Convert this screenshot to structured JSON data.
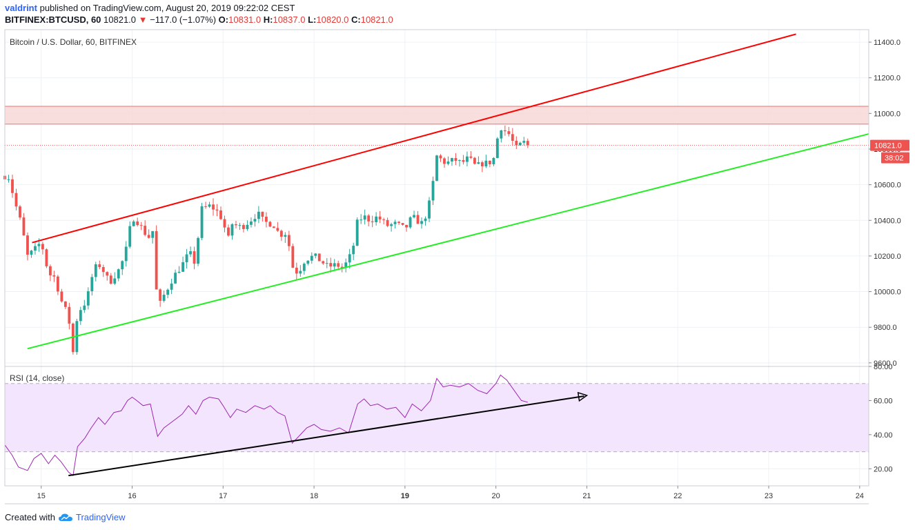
{
  "header": {
    "author": "valdrint",
    "published_text": "published on TradingView.com, August 20, 2019 09:22:02 CEST",
    "symbol": "BITFINEX:BTCUSD, 60",
    "last": "10821.0",
    "change_arrow": "▼",
    "change": "−117.0 (−1.07%)",
    "o_label": "O:",
    "o_value": "10831.0",
    "h_label": "H:",
    "h_value": "10837.0",
    "l_label": "L:",
    "l_value": "10820.0",
    "c_label": "C:",
    "c_value": "10821.0"
  },
  "footer": {
    "created_with": "Created with",
    "brand": "TradingView",
    "logo_icon": "tradingview-cloud-icon"
  },
  "colors": {
    "up": "#26a69a",
    "down": "#ef5350",
    "resistance_line": "#ff0000",
    "support_line": "#22ee22",
    "zone_fill": "#f8d8d8",
    "rsi_line": "#9c27b0",
    "rsi_band": "#f3e5fd",
    "price_badge": "#ef5350",
    "grid": "#eef2f6"
  },
  "chart_data": [
    {
      "type": "candlestick",
      "title": "Bitcoin / U.S. Dollar, 60, BITFINEX",
      "xlabel": "",
      "ylabel": "",
      "x_ticks": [
        "15",
        "16",
        "17",
        "18",
        "19",
        "20",
        "21",
        "22",
        "23",
        "24"
      ],
      "x_range_days": [
        14.6,
        24.1
      ],
      "y_ticks": [
        "11400.0",
        "11200.0",
        "11000.0",
        "10800.0",
        "10600.0",
        "10400.0",
        "10200.0",
        "10000.0",
        "9800.0",
        "9600.0"
      ],
      "ylim": [
        9580,
        11470
      ],
      "grid": true,
      "last_price_badge": "10821.0",
      "countdown_badge": "38:02",
      "last_price": 10821,
      "resistance_zone": [
        10940,
        11040
      ],
      "trendlines": [
        {
          "role": "resistance",
          "from": {
            "day": 14.9,
            "price": 10275
          },
          "to": {
            "day": 23.3,
            "price": 11445
          }
        },
        {
          "role": "support",
          "from": {
            "day": 14.85,
            "price": 9680
          },
          "to": {
            "day": 24.1,
            "price": 10885
          }
        }
      ],
      "close_anchors": [
        [
          14.6,
          10650
        ],
        [
          14.65,
          10640
        ],
        [
          14.7,
          10520
        ],
        [
          14.78,
          10380
        ],
        [
          14.85,
          10200
        ],
        [
          14.92,
          10230
        ],
        [
          15.0,
          10280
        ],
        [
          15.08,
          10100
        ],
        [
          15.15,
          10080
        ],
        [
          15.22,
          9950
        ],
        [
          15.3,
          9860
        ],
        [
          15.35,
          9660
        ],
        [
          15.4,
          9880
        ],
        [
          15.5,
          9950
        ],
        [
          15.58,
          10130
        ],
        [
          15.65,
          10150
        ],
        [
          15.75,
          10050
        ],
        [
          15.85,
          10120
        ],
        [
          15.92,
          10200
        ],
        [
          16.0,
          10420
        ],
        [
          16.05,
          10400
        ],
        [
          16.1,
          10360
        ],
        [
          16.18,
          10300
        ],
        [
          16.22,
          10380
        ],
        [
          16.28,
          9900
        ],
        [
          16.35,
          9980
        ],
        [
          16.45,
          10080
        ],
        [
          16.55,
          10150
        ],
        [
          16.63,
          10220
        ],
        [
          16.7,
          10150
        ],
        [
          16.75,
          10460
        ],
        [
          16.85,
          10480
        ],
        [
          16.92,
          10460
        ],
        [
          17.0,
          10400
        ],
        [
          17.05,
          10280
        ],
        [
          17.1,
          10380
        ],
        [
          17.2,
          10360
        ],
        [
          17.3,
          10400
        ],
        [
          17.38,
          10440
        ],
        [
          17.45,
          10390
        ],
        [
          17.55,
          10380
        ],
        [
          17.62,
          10320
        ],
        [
          17.7,
          10330
        ],
        [
          17.78,
          10100
        ],
        [
          17.85,
          10130
        ],
        [
          17.9,
          10180
        ],
        [
          18.0,
          10200
        ],
        [
          18.08,
          10170
        ],
        [
          18.15,
          10140
        ],
        [
          18.25,
          10150
        ],
        [
          18.32,
          10130
        ],
        [
          18.42,
          10220
        ],
        [
          18.48,
          10400
        ],
        [
          18.55,
          10420
        ],
        [
          18.62,
          10400
        ],
        [
          18.7,
          10420
        ],
        [
          18.8,
          10370
        ],
        [
          18.9,
          10380
        ],
        [
          19.0,
          10350
        ],
        [
          19.08,
          10420
        ],
        [
          19.18,
          10380
        ],
        [
          19.25,
          10450
        ],
        [
          19.3,
          10580
        ],
        [
          19.35,
          10760
        ],
        [
          19.45,
          10720
        ],
        [
          19.55,
          10740
        ],
        [
          19.62,
          10720
        ],
        [
          19.7,
          10750
        ],
        [
          19.78,
          10700
        ],
        [
          19.85,
          10720
        ],
        [
          19.92,
          10720
        ],
        [
          20.0,
          10760
        ],
        [
          20.03,
          10940
        ],
        [
          20.08,
          10910
        ],
        [
          20.15,
          10880
        ],
        [
          20.22,
          10800
        ],
        [
          20.3,
          10840
        ],
        [
          20.35,
          10821
        ]
      ]
    },
    {
      "type": "line",
      "title": "RSI (14, close)",
      "y_ticks": [
        "80.00",
        "60.00",
        "40.00",
        "20.00"
      ],
      "ylim": [
        10,
        80
      ],
      "band": [
        30,
        70
      ],
      "values": [
        [
          14.6,
          34
        ],
        [
          14.68,
          28
        ],
        [
          14.75,
          21
        ],
        [
          14.85,
          19
        ],
        [
          14.92,
          26
        ],
        [
          15.0,
          29
        ],
        [
          15.08,
          23
        ],
        [
          15.15,
          28
        ],
        [
          15.22,
          24
        ],
        [
          15.3,
          18
        ],
        [
          15.35,
          16
        ],
        [
          15.4,
          33
        ],
        [
          15.48,
          38
        ],
        [
          15.55,
          44
        ],
        [
          15.63,
          50
        ],
        [
          15.7,
          46
        ],
        [
          15.8,
          53
        ],
        [
          15.88,
          54
        ],
        [
          15.95,
          60
        ],
        [
          16.0,
          62
        ],
        [
          16.05,
          60
        ],
        [
          16.12,
          57
        ],
        [
          16.2,
          58
        ],
        [
          16.28,
          39
        ],
        [
          16.35,
          44
        ],
        [
          16.45,
          48
        ],
        [
          16.55,
          52
        ],
        [
          16.62,
          57
        ],
        [
          16.7,
          52
        ],
        [
          16.78,
          60
        ],
        [
          16.85,
          62
        ],
        [
          16.95,
          61
        ],
        [
          17.0,
          57
        ],
        [
          17.08,
          50
        ],
        [
          17.15,
          55
        ],
        [
          17.25,
          53
        ],
        [
          17.35,
          57
        ],
        [
          17.45,
          55
        ],
        [
          17.52,
          57
        ],
        [
          17.6,
          53
        ],
        [
          17.68,
          51
        ],
        [
          17.76,
          35
        ],
        [
          17.85,
          40
        ],
        [
          17.92,
          44
        ],
        [
          18.0,
          46
        ],
        [
          18.08,
          43
        ],
        [
          18.18,
          42
        ],
        [
          18.28,
          44
        ],
        [
          18.38,
          41
        ],
        [
          18.48,
          58
        ],
        [
          18.55,
          61
        ],
        [
          18.62,
          57
        ],
        [
          18.7,
          58
        ],
        [
          18.8,
          55
        ],
        [
          18.9,
          56
        ],
        [
          19.0,
          50
        ],
        [
          19.08,
          58
        ],
        [
          19.18,
          54
        ],
        [
          19.28,
          60
        ],
        [
          19.35,
          73
        ],
        [
          19.42,
          68
        ],
        [
          19.5,
          69
        ],
        [
          19.6,
          68
        ],
        [
          19.7,
          70
        ],
        [
          19.8,
          66
        ],
        [
          19.9,
          64
        ],
        [
          20.0,
          70
        ],
        [
          20.05,
          75
        ],
        [
          20.12,
          72
        ],
        [
          20.2,
          66
        ],
        [
          20.28,
          60
        ],
        [
          20.35,
          59
        ]
      ],
      "trendline": {
        "from": {
          "day": 15.3,
          "value": 16
        },
        "to": {
          "day": 21.0,
          "value": 63
        }
      }
    }
  ]
}
